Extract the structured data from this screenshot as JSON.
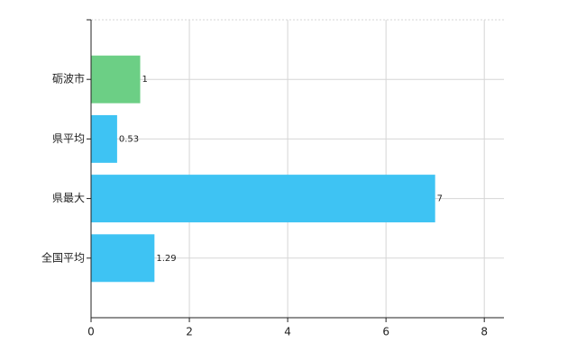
{
  "chart_data": {
    "type": "hbar",
    "categories": [
      "砺波市",
      "県平均",
      "県最大",
      "全国平均"
    ],
    "values": [
      1,
      0.53,
      7,
      1.29
    ],
    "colors": [
      "#6ccf85",
      "#3ec3f3",
      "#3ec3f3",
      "#3ec3f3"
    ],
    "xlim": [
      0,
      8.4
    ],
    "xticks": [
      0,
      2,
      4,
      6,
      8
    ],
    "grid": true
  }
}
